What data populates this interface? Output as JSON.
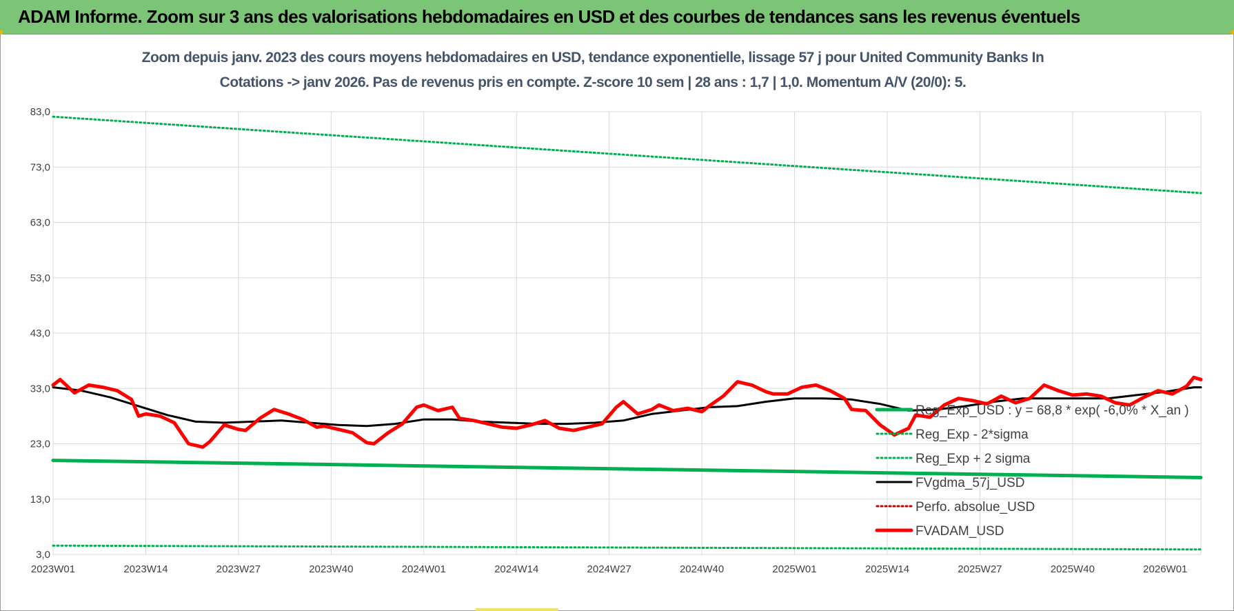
{
  "header": {
    "title": "ADAM Informe. Zoom sur 3 ans des valorisations hebdomadaires en USD et des courbes de tendances sans les revenus éventuels"
  },
  "colors": {
    "banner": "#7cc576",
    "reg_exp": "#00b050",
    "gdma": "#000000",
    "adam": "#ff0000",
    "grid": "#d9d9d9"
  },
  "chart_data": {
    "type": "line",
    "title": "Zoom depuis janv. 2023 des cours moyens hebdomadaires en USD, tendance exponentielle, lissage 57 j pour United Community Banks In",
    "subtitle": "Cotations -> janv 2026. Pas de revenus pris en compte. Z-score 10 sem | 28 ans : 1,7 | 1,0. Momentum A/V (20/0): 5.",
    "xlabel": "",
    "ylabel": "",
    "ylim": [
      3,
      85
    ],
    "yticks": [
      "83,0",
      "73,0",
      "63,0",
      "53,0",
      "43,0",
      "33,0",
      "23,0",
      "13,0",
      "3,0"
    ],
    "ytick_values": [
      83,
      73,
      63,
      53,
      43,
      33,
      23,
      13,
      3
    ],
    "xticks": [
      "2023W01",
      "2023W14",
      "2023W27",
      "2023W40",
      "2024W01",
      "2024W14",
      "2024W27",
      "2024W40",
      "2025W01",
      "2025W14",
      "2025W27",
      "2025W40",
      "2026W01"
    ],
    "xtick_weeks": [
      0,
      13,
      26,
      39,
      52,
      65,
      78,
      91,
      104,
      117,
      130,
      143,
      156
    ],
    "x_range": [
      0,
      161
    ],
    "grid": true,
    "legend_position": "bottom-right",
    "series": [
      {
        "name": "Reg_Exp_USD : y = 68,8 * exp( -6,0% * X_an )",
        "style": "solid-thick",
        "color": "#00b050",
        "weeks": [
          0,
          161
        ],
        "values": [
          20.0,
          16.9
        ]
      },
      {
        "name": "Reg_Exp - 2*sigma",
        "style": "dotted",
        "color": "#00b050",
        "weeks": [
          0,
          161
        ],
        "values": [
          4.6,
          3.9
        ]
      },
      {
        "name": "Reg_Exp + 2 sigma",
        "style": "dotted",
        "color": "#00b050",
        "weeks": [
          0,
          161
        ],
        "values": [
          82.1,
          68.3
        ]
      },
      {
        "name": "FVgdma_57j_USD",
        "style": "solid",
        "color": "#000000",
        "weeks": [
          0,
          4,
          8,
          12,
          16,
          20,
          24,
          28,
          32,
          36,
          40,
          44,
          48,
          52,
          56,
          60,
          64,
          68,
          72,
          76,
          80,
          84,
          88,
          92,
          96,
          100,
          104,
          108,
          112,
          116,
          120,
          124,
          128,
          132,
          136,
          140,
          144,
          148,
          152,
          156,
          160,
          161
        ],
        "values": [
          33.2,
          32.6,
          31.4,
          29.8,
          28.2,
          27.0,
          26.8,
          27.0,
          27.2,
          26.8,
          26.4,
          26.2,
          26.6,
          27.4,
          27.4,
          27.0,
          26.8,
          26.6,
          26.6,
          26.8,
          27.2,
          28.4,
          29.0,
          29.6,
          29.8,
          30.6,
          31.2,
          31.2,
          31.0,
          30.2,
          29.0,
          29.2,
          29.8,
          30.6,
          31.2,
          31.2,
          31.2,
          31.2,
          31.8,
          32.4,
          33.2,
          33.2
        ]
      },
      {
        "name": "Perfo. absolue_USD",
        "style": "dotted",
        "color": "#c00000",
        "weeks": [],
        "values": []
      },
      {
        "name": "FVADAM_USD",
        "style": "solid-thick",
        "color": "#ff0000",
        "weeks": [
          0,
          1,
          3,
          5,
          7,
          9,
          11,
          12,
          13,
          15,
          17,
          19,
          21,
          22,
          24,
          26,
          27,
          29,
          31,
          33,
          35,
          37,
          38,
          40,
          42,
          44,
          45,
          47,
          49,
          51,
          52,
          54,
          56,
          57,
          59,
          61,
          63,
          65,
          67,
          69,
          71,
          73,
          75,
          77,
          79,
          80,
          82,
          84,
          85,
          87,
          89,
          91,
          92,
          94,
          96,
          98,
          100,
          101,
          103,
          105,
          107,
          109,
          111,
          112,
          114,
          116,
          118,
          120,
          121,
          123,
          125,
          127,
          129,
          131,
          133,
          135,
          137,
          139,
          141,
          143,
          145,
          147,
          149,
          151,
          153,
          155,
          157,
          159,
          160,
          161
        ],
        "values": [
          33.6,
          34.6,
          32.2,
          33.6,
          33.2,
          32.6,
          31.0,
          28.0,
          28.4,
          28.0,
          26.8,
          23.0,
          22.4,
          23.4,
          26.4,
          25.6,
          25.4,
          27.6,
          29.2,
          28.4,
          27.4,
          26.0,
          26.2,
          25.6,
          25.0,
          23.2,
          23.0,
          25.0,
          26.6,
          29.6,
          30.0,
          29.0,
          29.6,
          27.6,
          27.2,
          26.6,
          26.0,
          25.8,
          26.4,
          27.2,
          25.8,
          25.4,
          26.0,
          26.6,
          29.6,
          30.6,
          28.4,
          29.2,
          30.0,
          29.0,
          29.4,
          28.8,
          29.8,
          31.6,
          34.2,
          33.6,
          32.4,
          32.0,
          32.0,
          33.2,
          33.6,
          32.6,
          31.2,
          29.2,
          29.0,
          26.4,
          24.6,
          25.8,
          28.2,
          27.8,
          30.0,
          31.2,
          30.8,
          30.2,
          31.6,
          30.4,
          31.2,
          33.6,
          32.6,
          31.8,
          32.0,
          31.6,
          30.4,
          30.0,
          31.4,
          32.6,
          32.0,
          33.4,
          35.0,
          34.6
        ]
      }
    ]
  }
}
